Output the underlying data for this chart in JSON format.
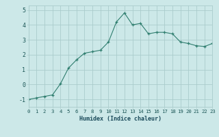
{
  "x": [
    0,
    1,
    2,
    3,
    4,
    5,
    6,
    7,
    8,
    9,
    10,
    11,
    12,
    13,
    14,
    15,
    16,
    17,
    18,
    19,
    20,
    21,
    22,
    23
  ],
  "y": [
    -1.0,
    -0.9,
    -0.8,
    -0.7,
    0.05,
    1.1,
    1.65,
    2.1,
    2.2,
    2.3,
    2.85,
    4.2,
    4.8,
    4.0,
    4.1,
    3.4,
    3.5,
    3.5,
    3.4,
    2.85,
    2.75,
    2.6,
    2.55,
    2.75
  ],
  "xlabel": "Humidex (Indice chaleur)",
  "xlim": [
    0,
    23
  ],
  "ylim": [
    -1.5,
    5.3
  ],
  "yticks": [
    -1,
    0,
    1,
    2,
    3,
    4,
    5
  ],
  "xticks": [
    0,
    1,
    2,
    3,
    4,
    5,
    6,
    7,
    8,
    9,
    10,
    11,
    12,
    13,
    14,
    15,
    16,
    17,
    18,
    19,
    20,
    21,
    22,
    23
  ],
  "bg_color": "#cce8e8",
  "line_color": "#2e7d6e",
  "marker_color": "#2e7d6e",
  "grid_color": "#aacccc",
  "tick_label_color": "#1a5555",
  "xlabel_color": "#1a4a5a",
  "font_family": "monospace"
}
